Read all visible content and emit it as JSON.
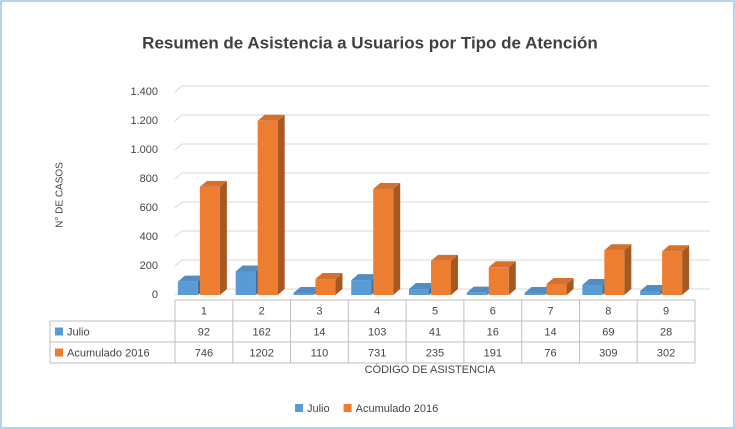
{
  "chart_data": {
    "type": "bar3d",
    "title": "Resumen  de Asistencia a Usuarios por Tipo de Atención",
    "y_label": "N° DE CASOS",
    "x_label": "CÓDIGO DE ASISTENCIA",
    "categories": [
      "1",
      "2",
      "3",
      "4",
      "5",
      "6",
      "7",
      "8",
      "9"
    ],
    "series": [
      {
        "name": "Julio",
        "color": "#5b9bd5",
        "values": [
          92,
          162,
          14,
          103,
          41,
          16,
          14,
          69,
          28
        ]
      },
      {
        "name": "Acumulado 2016",
        "color": "#ed7d31",
        "values": [
          746,
          1202,
          110,
          731,
          235,
          191,
          76,
          309,
          302
        ]
      }
    ],
    "ylim": [
      0,
      1400
    ],
    "yticks": [
      0,
      200,
      400,
      600,
      800,
      {
        "value": 1000,
        "label": "1.000"
      },
      {
        "value": 1200,
        "label": "1.200"
      },
      {
        "value": 1400,
        "label": "1.400"
      }
    ],
    "grid": true,
    "legend": "bottom"
  }
}
